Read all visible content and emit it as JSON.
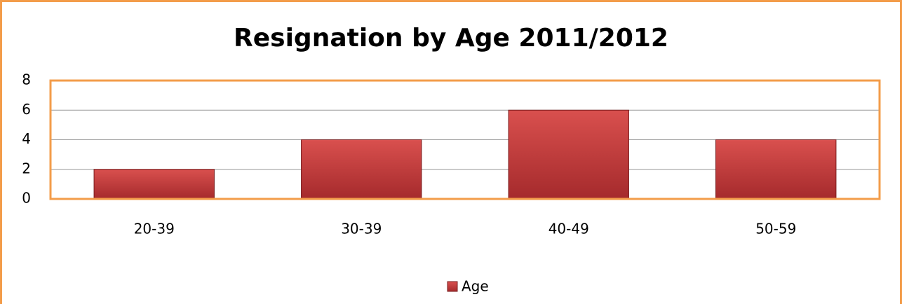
{
  "chart_data": {
    "type": "bar",
    "title": "Resignation by Age 2011/2012",
    "categories": [
      "20-39",
      "30-39",
      "40-49",
      "50-59"
    ],
    "series": [
      {
        "name": "Age",
        "color": "#c0393b",
        "values": [
          2,
          4,
          6,
          4
        ]
      }
    ],
    "ylim": [
      0,
      8
    ],
    "yticks": [
      0,
      2,
      4,
      6,
      8
    ],
    "grid": true,
    "legend": "bottom"
  }
}
